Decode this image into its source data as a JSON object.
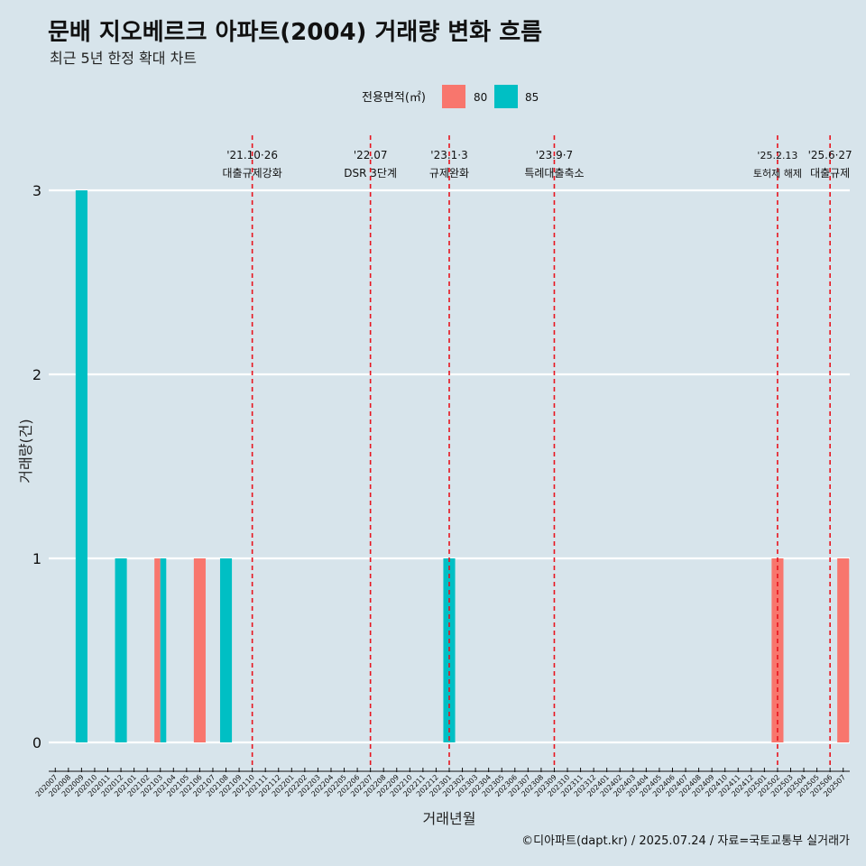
{
  "chart_data": {
    "type": "bar",
    "title": "문배 지오베르크 아파트(2004) 거래량 변화 흐름",
    "subtitle": "최근 5년 한정 확대 차트",
    "xlabel": "거래년월",
    "ylabel": "거래량(건)",
    "ylim": [
      -0.15,
      3.3
    ],
    "yticks": [
      0,
      1,
      2,
      3
    ],
    "legend": {
      "title": "전용면적(㎡)",
      "placement": "top"
    },
    "categories": [
      "202007",
      "202008",
      "202009",
      "202010",
      "202011",
      "202012",
      "202101",
      "202102",
      "202103",
      "202104",
      "202105",
      "202106",
      "202107",
      "202108",
      "202109",
      "202110",
      "202111",
      "202112",
      "202201",
      "202202",
      "202203",
      "202204",
      "202205",
      "202206",
      "202207",
      "202208",
      "202209",
      "202210",
      "202211",
      "202212",
      "202301",
      "202302",
      "202303",
      "202304",
      "202305",
      "202306",
      "202307",
      "202308",
      "202309",
      "202310",
      "202311",
      "202312",
      "202401",
      "202402",
      "202403",
      "202404",
      "202405",
      "202406",
      "202407",
      "202408",
      "202409",
      "202410",
      "202411",
      "202412",
      "202501",
      "202502",
      "202503",
      "202504",
      "202505",
      "202506",
      "202507"
    ],
    "series": [
      {
        "name": "80",
        "color": "#f8766d",
        "points": [
          [
            "202103",
            1
          ],
          [
            "202106",
            1
          ],
          [
            "202502",
            1
          ],
          [
            "202507",
            1
          ]
        ]
      },
      {
        "name": "85",
        "color": "#00bfc4",
        "points": [
          [
            "202009",
            3
          ],
          [
            "202012",
            1
          ],
          [
            "202103",
            1
          ],
          [
            "202108",
            1
          ],
          [
            "202301",
            1
          ]
        ]
      }
    ],
    "vlines": [
      {
        "x": "202110",
        "date": "'21.10·26",
        "label": "대출규제강화"
      },
      {
        "x": "202207",
        "date": "'22.07",
        "label": "DSR 3단계"
      },
      {
        "x": "202301",
        "date": "'23.1·3",
        "label": "규제완화"
      },
      {
        "x": "202309",
        "date": "'23.9·7",
        "label": "특례대출축소"
      },
      {
        "x": "202502",
        "date": "'25.2.13",
        "label": "토허제 해제"
      },
      {
        "x": "202506",
        "date": "'25.6·27",
        "label": "대출규제"
      }
    ],
    "vline_color": "#e8141e",
    "grid": "horizontal"
  },
  "caption": "©디아파트(dapt.kr) / 2025.07.24 / 자료=국토교통부 실거래가"
}
